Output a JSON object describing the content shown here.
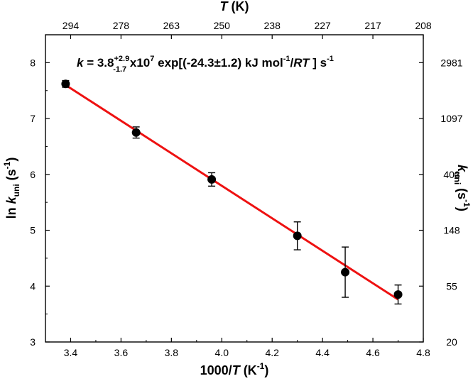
{
  "chart_data": {
    "type": "scatter",
    "title": "",
    "colors": {
      "fit_line": "#ee1111",
      "points": "#000000"
    },
    "x_axis": {
      "label_prefix": "1000/",
      "label_var": "T",
      "label_unit_open": " (K",
      "label_unit_sup": "-1",
      "label_unit_close": ")",
      "range": [
        3.3,
        4.8
      ],
      "ticks": [
        3.4,
        3.6,
        3.8,
        4.0,
        4.2,
        4.4,
        4.6,
        4.8
      ],
      "tick_labels": [
        "3.4",
        "3.6",
        "3.8",
        "4.0",
        "4.2",
        "4.4",
        "4.6",
        "4.8"
      ]
    },
    "y_axis": {
      "label_prefix": "ln ",
      "label_var": "k",
      "label_sub": "uni",
      "label_unit_open": " (s",
      "label_unit_sup": "-1",
      "label_unit_close": ")",
      "range": [
        3,
        8.5
      ],
      "ticks": [
        3,
        4,
        5,
        6,
        7,
        8
      ],
      "tick_labels": [
        "3",
        "4",
        "5",
        "6",
        "7",
        "8"
      ]
    },
    "top_axis": {
      "label_var": "T",
      "label_unit": " (K)",
      "ticks_at_x": [
        3.4,
        3.6,
        3.8,
        4.0,
        4.2,
        4.4,
        4.6,
        4.8
      ],
      "tick_labels": [
        "294",
        "278",
        "263",
        "250",
        "238",
        "227",
        "217",
        "208"
      ]
    },
    "right_axis": {
      "label_var": "k",
      "label_sub": "uni",
      "label_unit_open": " (s",
      "label_unit_sup": "-1",
      "label_unit_close": ")",
      "ticks_at_y": [
        3,
        4,
        5,
        6,
        7,
        8
      ],
      "tick_labels": [
        "20",
        "55",
        "148",
        "403",
        "1097",
        "2981"
      ]
    },
    "series": [
      {
        "points": [
          {
            "x": 3.38,
            "y": 7.62,
            "err": 0.06
          },
          {
            "x": 3.66,
            "y": 6.75,
            "err": 0.1
          },
          {
            "x": 3.96,
            "y": 5.91,
            "err": 0.12
          },
          {
            "x": 4.3,
            "y": 4.9,
            "err": 0.25
          },
          {
            "x": 4.49,
            "y": 4.25,
            "err": 0.45
          },
          {
            "x": 4.7,
            "y": 3.85,
            "err": 0.17
          }
        ]
      }
    ],
    "fit_line": {
      "x": [
        3.38,
        4.7
      ],
      "y": [
        7.6,
        3.76
      ]
    },
    "annotation": {
      "k": "k",
      "eq": " = 3.8",
      "sup": "+2.9",
      "sub": "-1.7",
      "x10": " x10",
      "exp7": "7",
      "mid": " exp[(-24.3±1.2) kJ mol",
      "mol_sup": "-1",
      "slash": "/",
      "RT": "RT",
      "close": " ] s",
      "s_sup": "-1"
    }
  }
}
